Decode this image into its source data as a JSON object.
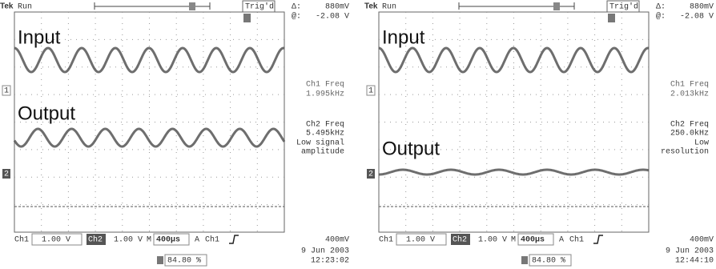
{
  "panels": [
    {
      "brand": "Tek",
      "status": "Run",
      "trigger": "Trig'd",
      "delta_label": "Δ:",
      "delta_value": "880mV",
      "at_label": "@:",
      "at_value": "-2.08 V",
      "input_label": "Input",
      "output_label": "Output",
      "ch1_marker": "1",
      "ch2_marker": "2",
      "ch1_freq_label": "Ch1 Freq",
      "ch1_freq": "1.995kHz",
      "ch2_freq_label": "Ch2 Freq",
      "ch2_freq": "5.495kHz",
      "ch2_note": [
        "Low signal",
        "amplitude"
      ],
      "ch1": "Ch1",
      "ch1_scale": "1.00 V",
      "ch2": "Ch2",
      "ch2_scale": "1.00 V",
      "timebase_label": "M",
      "timebase": "400µs",
      "trigger_mode": "A",
      "trigger_source": "Ch1",
      "trigger_level": "400mV",
      "position": "84.80 %",
      "date": "9 Jun 2003",
      "time": "12:23:02"
    },
    {
      "brand": "Tek",
      "status": "Run",
      "trigger": "Trig'd",
      "delta_label": "Δ:",
      "delta_value": "880mV",
      "at_label": "@:",
      "at_value": "-2.08 V",
      "input_label": "Input",
      "output_label": "Output",
      "ch1_marker": "1",
      "ch2_marker": "2",
      "ch1_freq_label": "Ch1 Freq",
      "ch1_freq": "2.013kHz",
      "ch2_freq_label": "Ch2 Freq",
      "ch2_freq": "250.0kHz",
      "ch2_note": [
        "Low",
        "resolution"
      ],
      "ch1": "Ch1",
      "ch1_scale": "1.00 V",
      "ch2": "Ch2",
      "ch2_scale": "1.00 V",
      "timebase_label": "M",
      "timebase": "400µs",
      "trigger_mode": "A",
      "trigger_source": "Ch1",
      "trigger_level": "400mV",
      "position": "84.80 %",
      "date": "9 Jun 2003",
      "time": "12:44:10"
    }
  ]
}
